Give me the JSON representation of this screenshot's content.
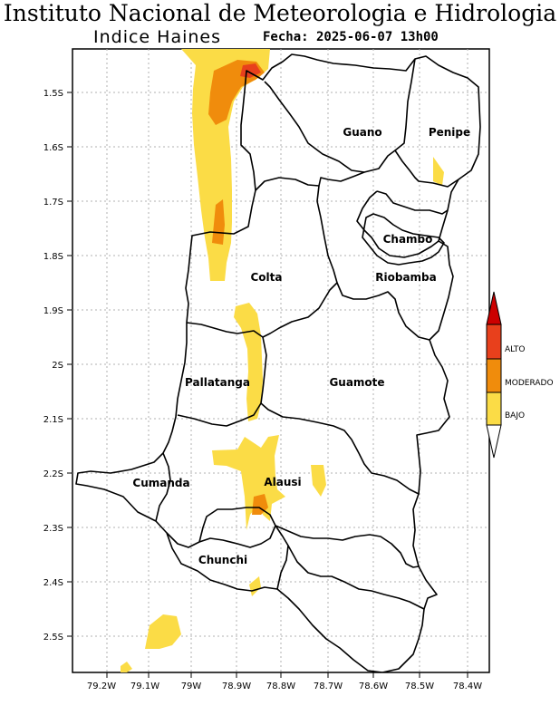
{
  "header": {
    "title": "Instituto Nacional de Meteorologia e Hidrologia",
    "subtitle": "Indice Haines",
    "datetime": "Fecha: 2025-06-07 13h00"
  },
  "axes": {
    "lat_labels": [
      "1.5S",
      "1.6S",
      "1.7S",
      "1.8S",
      "1.9S",
      "2S",
      "2.1S",
      "2.2S",
      "2.3S",
      "2.4S",
      "2.5S"
    ],
    "lon_labels": [
      "79.2W",
      "79.1W",
      "79W",
      "78.9W",
      "78.8W",
      "78.7W",
      "78.6W",
      "78.5W",
      "78.4W"
    ]
  },
  "regions": [
    "Guano",
    "Penipe",
    "Chambo",
    "Riobamba",
    "Colta",
    "Pallatanga",
    "Guamote",
    "Cumanda",
    "Alausi",
    "Chunchi"
  ],
  "legend": {
    "items": [
      {
        "label": "ALTO",
        "color": "#e8401c"
      },
      {
        "label": "MODERADO",
        "color": "#f08c0c"
      },
      {
        "label": "BAJO",
        "color": "#fbdc46"
      }
    ],
    "top_color": "#cc0000",
    "bottom_color": "#ffffff"
  }
}
